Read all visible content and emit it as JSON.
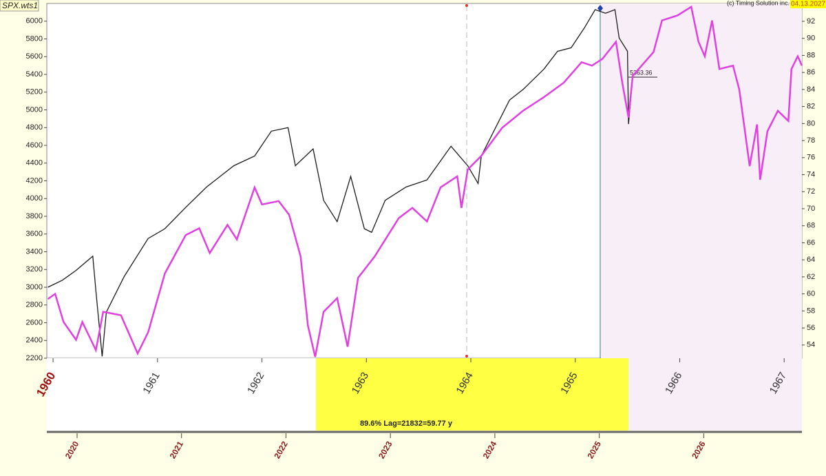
{
  "chart_data": {
    "type": "line",
    "title": "SPX.wts1",
    "annotations": {
      "copyright": "(c) Timing Solution inc.",
      "date": "04.13.2027",
      "lag": "89.6% Lag=21832=59.77 y",
      "price": "5363.36"
    },
    "xlim": [
      2019.71,
      2026.94
    ],
    "xticks": [
      2020,
      2021,
      2022,
      2023,
      2024,
      2025,
      2026
    ],
    "x2lim": [
      1959.94,
      1967.17
    ],
    "x2ticks": [
      1960,
      1961,
      1962,
      1963,
      1964,
      1965,
      1966,
      1967
    ],
    "ylim": [
      2200,
      6200
    ],
    "yticks": [
      2200,
      2400,
      2600,
      2800,
      3000,
      3200,
      3400,
      3600,
      3800,
      4000,
      4200,
      4400,
      4600,
      4800,
      5000,
      5200,
      5400,
      5600,
      5800,
      6000
    ],
    "y2lim": [
      52.45,
      94.1
    ],
    "y2ticks": [
      54,
      56,
      58,
      60,
      62,
      64,
      66,
      68,
      70,
      72,
      74,
      76,
      78,
      80,
      82,
      84,
      86,
      88,
      90,
      92
    ],
    "series": [
      {
        "color": "#1a1a1a",
        "x": [
          2019.72,
          2019.86,
          2019.99,
          2020.15,
          2020.18,
          2020.24,
          2020.28,
          2020.45,
          2020.68,
          2020.84,
          2021.04,
          2021.24,
          2021.5,
          2021.7,
          2021.86,
          2022.02,
          2022.09,
          2022.26,
          2022.36,
          2022.49,
          2022.62,
          2022.75,
          2022.82,
          2022.95,
          2023.15,
          2023.35,
          2023.58,
          2023.74,
          2023.84,
          2023.87,
          2024.14,
          2024.27,
          2024.47,
          2024.6,
          2024.73,
          2024.86,
          2024.96,
          2025.06,
          2025.15,
          2025.19,
          2025.27,
          2025.28,
          2025.32
        ],
        "values": [
          3000,
          3080,
          3190,
          3350,
          2960,
          2220,
          2720,
          3120,
          3550,
          3660,
          3900,
          4130,
          4370,
          4480,
          4760,
          4800,
          4370,
          4560,
          3980,
          3740,
          4250,
          3660,
          3620,
          3980,
          4130,
          4210,
          4590,
          4370,
          4170,
          4480,
          5110,
          5230,
          5460,
          5660,
          5700,
          5930,
          6130,
          6090,
          6130,
          5810,
          5660,
          4840,
          5380
        ]
      },
      {
        "color": "#e040e0",
        "axis": "y2",
        "x": [
          2019.72,
          2019.79,
          2019.87,
          2019.99,
          2020.05,
          2020.18,
          2020.25,
          2020.42,
          2020.58,
          2020.68,
          2020.84,
          2021.04,
          2021.17,
          2021.27,
          2021.44,
          2021.53,
          2021.7,
          2021.77,
          2021.93,
          2022.03,
          2022.14,
          2022.21,
          2022.28,
          2022.36,
          2022.49,
          2022.59,
          2022.69,
          2022.85,
          2023.08,
          2023.21,
          2023.35,
          2023.48,
          2023.64,
          2023.68,
          2023.74,
          2023.87,
          2024.07,
          2024.27,
          2024.47,
          2024.66,
          2024.83,
          2024.93,
          2025.03,
          2025.16,
          2025.22,
          2025.28,
          2025.32,
          2025.52,
          2025.6,
          2025.75,
          2025.88,
          2025.95,
          2026.01,
          2026.08,
          2026.15,
          2026.28,
          2026.34,
          2026.44,
          2026.51,
          2026.54,
          2026.61,
          2026.71,
          2026.81,
          2026.84,
          2026.9,
          2026.94
        ],
        "values": [
          59.4,
          60.0,
          56.7,
          54.6,
          56.7,
          53.4,
          57.9,
          57.5,
          53.0,
          55.5,
          62.4,
          66.9,
          67.7,
          64.8,
          68.1,
          66.4,
          72.5,
          70.5,
          70.9,
          69.3,
          64.4,
          56.3,
          52.6,
          57.9,
          59.5,
          53.8,
          61.9,
          64.4,
          68.9,
          70.1,
          68.5,
          72.5,
          73.8,
          70.1,
          74.6,
          76.2,
          79.5,
          81.5,
          83.1,
          84.8,
          87.2,
          86.8,
          87.6,
          89.6,
          84.8,
          80.7,
          85.6,
          88.4,
          92.1,
          92.7,
          93.7,
          89.6,
          87.9,
          92.1,
          86.4,
          86.8,
          84.0,
          75.0,
          79.9,
          73.4,
          79.1,
          81.5,
          80.3,
          86.4,
          87.9,
          86.8
        ]
      }
    ]
  }
}
